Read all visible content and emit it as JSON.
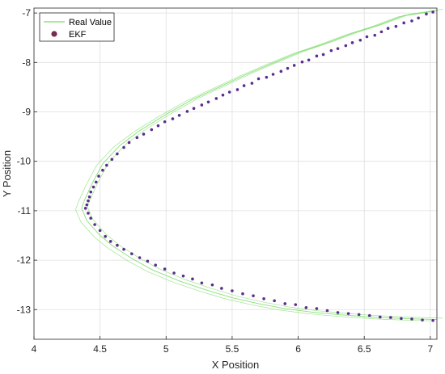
{
  "chart_data": {
    "type": "scatter",
    "title": "",
    "xlabel": "X Position",
    "ylabel": "Y Position",
    "xlim": [
      4.0,
      7.05
    ],
    "ylim": [
      -13.6,
      -6.9
    ],
    "xticks": [
      4,
      4.5,
      5,
      5.5,
      6,
      6.5,
      7
    ],
    "yticks": [
      -13,
      -12,
      -11,
      -10,
      -9,
      -8,
      -7
    ],
    "xtick_labels": [
      "4",
      "4.5",
      "5",
      "5.5",
      "6",
      "6.5",
      "7"
    ],
    "ytick_labels": [
      "-13",
      "-12",
      "-11",
      "-10",
      "-9",
      "-8",
      "-7"
    ],
    "grid": true,
    "legend_position": "top-left",
    "series": [
      {
        "name": "Real Value",
        "kind": "line",
        "color": "#7ddc6a",
        "x": [
          7.05,
          6.8,
          6.6,
          6.4,
          6.2,
          6.0,
          5.8,
          5.6,
          5.4,
          5.2,
          5.0,
          4.8,
          4.65,
          4.52,
          4.44,
          4.38,
          4.36,
          4.4,
          4.5,
          4.6,
          4.75,
          4.9,
          5.1,
          5.3,
          5.5,
          5.7,
          5.9,
          6.1,
          6.3,
          6.5,
          6.7,
          6.9,
          7.05
        ],
        "y": [
          -6.95,
          -7.05,
          -7.25,
          -7.42,
          -7.62,
          -7.8,
          -8.02,
          -8.25,
          -8.5,
          -8.75,
          -9.05,
          -9.38,
          -9.68,
          -10.05,
          -10.45,
          -10.8,
          -10.95,
          -11.2,
          -11.5,
          -11.72,
          -11.98,
          -12.2,
          -12.42,
          -12.6,
          -12.76,
          -12.88,
          -12.98,
          -13.05,
          -13.1,
          -13.14,
          -13.17,
          -13.19,
          -13.2
        ],
        "band": 0.045
      },
      {
        "name": "EKF",
        "kind": "scatter",
        "color": "#5b2d8e",
        "x": [
          7.02,
          6.97,
          6.91,
          6.86,
          6.8,
          6.74,
          6.68,
          6.63,
          6.58,
          6.52,
          6.47,
          6.41,
          6.36,
          6.3,
          6.25,
          6.19,
          6.14,
          6.08,
          6.03,
          5.97,
          5.92,
          5.87,
          5.81,
          5.76,
          5.7,
          5.65,
          5.59,
          5.54,
          5.48,
          5.43,
          5.38,
          5.32,
          5.27,
          5.21,
          5.16,
          5.1,
          5.05,
          4.99,
          4.94,
          4.89,
          4.83,
          4.78,
          4.72,
          4.68,
          4.63,
          4.59,
          4.55,
          4.52,
          4.49,
          4.47,
          4.45,
          4.43,
          4.42,
          4.41,
          4.4,
          4.39,
          4.41,
          4.43,
          4.46,
          4.5,
          4.54,
          4.58,
          4.63,
          4.68,
          4.74,
          4.8,
          4.86,
          4.92,
          4.99,
          5.06,
          5.13,
          5.2,
          5.27,
          5.35,
          5.42,
          5.5,
          5.58,
          5.66,
          5.74,
          5.82,
          5.9,
          5.98,
          6.06,
          6.14,
          6.22,
          6.3,
          6.38,
          6.46,
          6.54,
          6.62,
          6.7,
          6.78,
          6.86,
          6.94,
          7.02
        ],
        "y": [
          -6.98,
          -7.02,
          -7.1,
          -7.16,
          -7.2,
          -7.27,
          -7.31,
          -7.38,
          -7.45,
          -7.48,
          -7.55,
          -7.6,
          -7.66,
          -7.72,
          -7.76,
          -7.84,
          -7.87,
          -7.95,
          -7.99,
          -8.06,
          -8.12,
          -8.18,
          -8.24,
          -8.3,
          -8.33,
          -8.42,
          -8.47,
          -8.55,
          -8.6,
          -8.66,
          -8.73,
          -8.8,
          -8.86,
          -8.93,
          -8.99,
          -9.07,
          -9.14,
          -9.2,
          -9.28,
          -9.36,
          -9.45,
          -9.52,
          -9.62,
          -9.72,
          -9.85,
          -9.96,
          -10.08,
          -10.18,
          -10.3,
          -10.42,
          -10.52,
          -10.62,
          -10.72,
          -10.8,
          -10.88,
          -10.95,
          -11.05,
          -11.15,
          -11.28,
          -11.4,
          -11.52,
          -11.62,
          -11.7,
          -11.78,
          -11.87,
          -11.95,
          -12.02,
          -12.1,
          -12.18,
          -12.26,
          -12.32,
          -12.38,
          -12.46,
          -12.5,
          -12.57,
          -12.62,
          -12.68,
          -12.72,
          -12.78,
          -12.82,
          -12.88,
          -12.9,
          -12.96,
          -12.98,
          -13.02,
          -13.06,
          -13.08,
          -13.1,
          -13.12,
          -13.15,
          -13.16,
          -13.18,
          -13.19,
          -13.21,
          -13.22
        ]
      }
    ]
  }
}
